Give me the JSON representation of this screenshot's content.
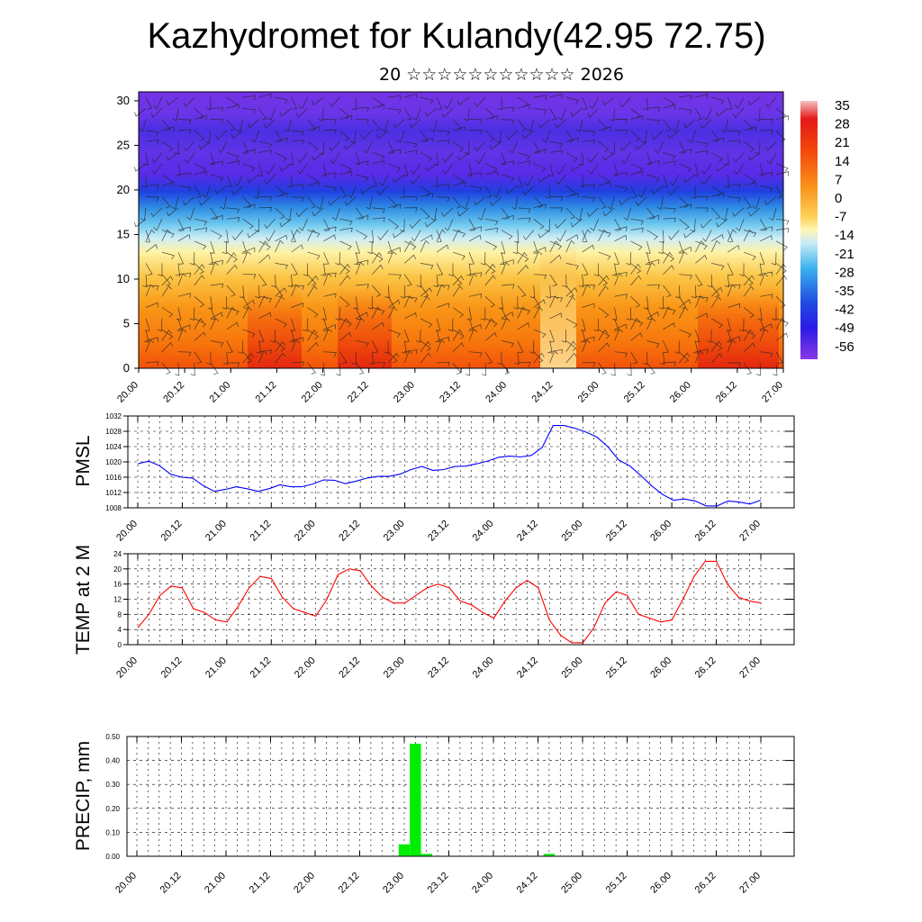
{
  "title": "Kazhydromet for Kulandy(42.95 72.75)",
  "subtitle": "20 ☆☆☆☆☆☆☆☆☆☆☆ 2026",
  "chart_data": [
    {
      "id": "cross-section",
      "type": "heatmap",
      "x_ticks": [
        "20.00",
        "20.12",
        "21.00",
        "21.12",
        "22.00",
        "22.12",
        "23.00",
        "23.12",
        "24.00",
        "24.12",
        "25.00",
        "25.12",
        "26.00",
        "26.12",
        "27.00"
      ],
      "ylim": [
        0,
        31
      ],
      "y_ticks": [
        0,
        5,
        10,
        15,
        20,
        25,
        30
      ],
      "colorbar_labels": [
        "35",
        "28",
        "21",
        "14",
        "7",
        "0",
        "-7",
        "-14",
        "-21",
        "-28",
        "-35",
        "-42",
        "-49",
        "-56"
      ],
      "colorbar_range": [
        -63,
        42
      ],
      "overlay": "wind barbs"
    },
    {
      "id": "pmsl",
      "type": "line",
      "ylabel": "PMSL",
      "ylim": [
        1008,
        1032
      ],
      "y_ticks": [
        1008,
        1012,
        1016,
        1020,
        1024,
        1028,
        1032
      ],
      "x_ticks": [
        "20.00",
        "20.12",
        "21.00",
        "21.12",
        "22.00",
        "22.12",
        "23.00",
        "23.12",
        "24.00",
        "24.12",
        "25.00",
        "25.12",
        "26.00",
        "26.12",
        "27.00"
      ],
      "color": "#0000ff",
      "values": [
        1019.5,
        1020.2,
        1019,
        1016.8,
        1016,
        1015.8,
        1013.8,
        1012.3,
        1012.8,
        1013.5,
        1013,
        1012.3,
        1013,
        1014,
        1013.5,
        1013.5,
        1014.2,
        1015.3,
        1015.2,
        1014.3,
        1015,
        1015.8,
        1016.2,
        1016.2,
        1016.8,
        1018,
        1018.8,
        1017.8,
        1018,
        1018.8,
        1018.9,
        1019.5,
        1020.2,
        1021.2,
        1021.5,
        1021.3,
        1021.7,
        1023.8,
        1029.5,
        1029.5,
        1028.8,
        1027.8,
        1026.5,
        1024,
        1020.5,
        1019,
        1016.5,
        1013.8,
        1011.5,
        1010,
        1010.3,
        1009.8,
        1008.5,
        1008.5,
        1009.8,
        1009.5,
        1009,
        1010
      ]
    },
    {
      "id": "temp",
      "type": "line",
      "ylabel": "TEMP at 2 M",
      "ylim": [
        0,
        24
      ],
      "y_ticks": [
        0,
        4,
        8,
        12,
        16,
        20,
        24
      ],
      "x_ticks": [
        "20.00",
        "20.12",
        "21.00",
        "21.12",
        "22.00",
        "22.12",
        "23.00",
        "23.12",
        "24.00",
        "24.12",
        "25.00",
        "25.12",
        "26.00",
        "26.12",
        "27.00"
      ],
      "color": "#ff0000",
      "values": [
        4.5,
        8,
        13,
        15.5,
        15,
        9.5,
        8.5,
        6.5,
        6,
        10,
        15,
        18,
        17.5,
        12.5,
        9.5,
        8.5,
        7.5,
        12,
        18.5,
        20,
        19.5,
        15.5,
        12.5,
        11,
        11,
        13,
        15,
        16,
        15,
        11.5,
        10.5,
        8.5,
        7,
        11.5,
        15,
        17,
        15,
        6.5,
        2.5,
        0.5,
        0.5,
        4.5,
        11,
        14,
        13,
        8,
        7,
        6,
        6.5,
        12,
        18,
        22,
        22,
        16,
        12.5,
        11.5,
        11
      ]
    },
    {
      "id": "precip",
      "type": "bar",
      "ylabel": "PRECIP, mm",
      "ylim": [
        0,
        0.5
      ],
      "y_ticks": [
        "0.00",
        "0.10",
        "0.20",
        "0.30",
        "0.40",
        "0.50"
      ],
      "x_ticks": [
        "20.00",
        "20.12",
        "21.00",
        "21.12",
        "22.00",
        "22.12",
        "23.00",
        "23.12",
        "24.00",
        "24.12",
        "25.00",
        "25.12",
        "26.00",
        "26.12",
        "27.00"
      ],
      "color": "#00ee00",
      "bars": [
        {
          "hour": 72,
          "value": 0.05
        },
        {
          "hour": 75,
          "value": 0.47
        },
        {
          "hour": 78,
          "value": 0.01
        },
        {
          "hour": 111,
          "value": 0.01
        }
      ]
    }
  ]
}
